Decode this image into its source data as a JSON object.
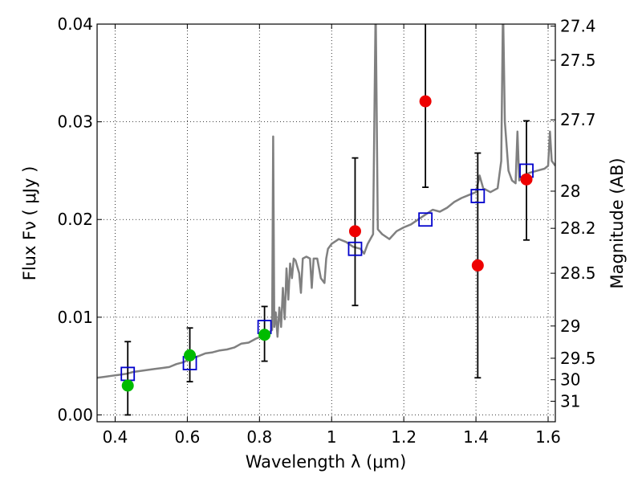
{
  "chart_data": {
    "type": "scatter",
    "xlabel": "Wavelength  λ (μm)",
    "ylabel": "Flux  Fν  ( μJy )",
    "y2label": "Magnitude (AB)",
    "xlim": [
      0.35,
      1.62
    ],
    "ylim": [
      -0.0007,
      0.04
    ],
    "grid": true,
    "xticks": [
      {
        "v": 0.4,
        "label": "0.4"
      },
      {
        "v": 0.6,
        "label": "0.6"
      },
      {
        "v": 0.8,
        "label": "0.8"
      },
      {
        "v": 1.0,
        "label": "1"
      },
      {
        "v": 1.2,
        "label": "1.2"
      },
      {
        "v": 1.4,
        "label": "1.4"
      },
      {
        "v": 1.6,
        "label": "1.6"
      }
    ],
    "yticks": [
      {
        "v": 0.0,
        "label": "0.00"
      },
      {
        "v": 0.01,
        "label": "0.01"
      },
      {
        "v": 0.02,
        "label": "0.02"
      },
      {
        "v": 0.03,
        "label": "0.03"
      },
      {
        "v": 0.04,
        "label": "0.04"
      }
    ],
    "y2ticks": [
      {
        "flux": 0.0398,
        "label": "27.4"
      },
      {
        "flux": 0.0363,
        "label": "27.5"
      },
      {
        "flux": 0.0302,
        "label": "27.7"
      },
      {
        "flux": 0.0229,
        "label": "28"
      },
      {
        "flux": 0.0191,
        "label": "28.2"
      },
      {
        "flux": 0.0145,
        "label": "28.5"
      },
      {
        "flux": 0.0091,
        "label": "29"
      },
      {
        "flux": 0.0058,
        "label": "29.5"
      },
      {
        "flux": 0.0036,
        "label": "30"
      },
      {
        "flux": 0.0014,
        "label": "31"
      }
    ],
    "spectrum": {
      "color": "#808080",
      "points": [
        [
          0.35,
          0.0038
        ],
        [
          0.37,
          0.0039
        ],
        [
          0.39,
          0.004
        ],
        [
          0.41,
          0.0041
        ],
        [
          0.43,
          0.0042
        ],
        [
          0.45,
          0.0044
        ],
        [
          0.47,
          0.0045
        ],
        [
          0.49,
          0.0046
        ],
        [
          0.51,
          0.0047
        ],
        [
          0.53,
          0.0048
        ],
        [
          0.55,
          0.0049
        ],
        [
          0.57,
          0.0052
        ],
        [
          0.59,
          0.0054
        ],
        [
          0.61,
          0.0058
        ],
        [
          0.63,
          0.006
        ],
        [
          0.65,
          0.0063
        ],
        [
          0.67,
          0.0064
        ],
        [
          0.69,
          0.0066
        ],
        [
          0.71,
          0.0067
        ],
        [
          0.73,
          0.0069
        ],
        [
          0.75,
          0.0073
        ],
        [
          0.77,
          0.0074
        ],
        [
          0.79,
          0.0078
        ],
        [
          0.81,
          0.0081
        ],
        [
          0.825,
          0.0084
        ],
        [
          0.835,
          0.0087
        ],
        [
          0.838,
          0.0285
        ],
        [
          0.841,
          0.009
        ],
        [
          0.845,
          0.0105
        ],
        [
          0.85,
          0.008
        ],
        [
          0.855,
          0.011
        ],
        [
          0.86,
          0.009
        ],
        [
          0.865,
          0.013
        ],
        [
          0.87,
          0.0098
        ],
        [
          0.875,
          0.015
        ],
        [
          0.88,
          0.0118
        ],
        [
          0.885,
          0.0155
        ],
        [
          0.89,
          0.014
        ],
        [
          0.895,
          0.016
        ],
        [
          0.9,
          0.0158
        ],
        [
          0.91,
          0.0145
        ],
        [
          0.915,
          0.0125
        ],
        [
          0.92,
          0.016
        ],
        [
          0.93,
          0.0162
        ],
        [
          0.94,
          0.016
        ],
        [
          0.945,
          0.013
        ],
        [
          0.95,
          0.016
        ],
        [
          0.96,
          0.016
        ],
        [
          0.97,
          0.014
        ],
        [
          0.98,
          0.0135
        ],
        [
          0.985,
          0.016
        ],
        [
          0.99,
          0.017
        ],
        [
          1.0,
          0.0175
        ],
        [
          1.02,
          0.018
        ],
        [
          1.04,
          0.0177
        ],
        [
          1.06,
          0.0172
        ],
        [
          1.08,
          0.017
        ],
        [
          1.09,
          0.0165
        ],
        [
          1.1,
          0.0175
        ],
        [
          1.115,
          0.0185
        ],
        [
          1.122,
          0.042
        ],
        [
          1.128,
          0.019
        ],
        [
          1.14,
          0.0185
        ],
        [
          1.16,
          0.018
        ],
        [
          1.18,
          0.0188
        ],
        [
          1.2,
          0.0192
        ],
        [
          1.22,
          0.0195
        ],
        [
          1.24,
          0.02
        ],
        [
          1.26,
          0.0205
        ],
        [
          1.28,
          0.021
        ],
        [
          1.3,
          0.0208
        ],
        [
          1.32,
          0.0212
        ],
        [
          1.34,
          0.0218
        ],
        [
          1.36,
          0.0222
        ],
        [
          1.38,
          0.0225
        ],
        [
          1.4,
          0.0228
        ],
        [
          1.41,
          0.0245
        ],
        [
          1.42,
          0.0232
        ],
        [
          1.44,
          0.0228
        ],
        [
          1.46,
          0.0232
        ],
        [
          1.47,
          0.026
        ],
        [
          1.475,
          0.042
        ],
        [
          1.48,
          0.03
        ],
        [
          1.49,
          0.025
        ],
        [
          1.5,
          0.024
        ],
        [
          1.51,
          0.0237
        ],
        [
          1.515,
          0.029
        ],
        [
          1.52,
          0.024
        ],
        [
          1.53,
          0.0245
        ],
        [
          1.55,
          0.0248
        ],
        [
          1.57,
          0.025
        ],
        [
          1.59,
          0.0252
        ],
        [
          1.6,
          0.0255
        ],
        [
          1.605,
          0.029
        ],
        [
          1.61,
          0.026
        ],
        [
          1.62,
          0.0255
        ]
      ]
    },
    "model_points": {
      "color": "#0000cc",
      "points": [
        [
          0.435,
          0.0042
        ],
        [
          0.607,
          0.0053
        ],
        [
          0.814,
          0.009
        ],
        [
          1.065,
          0.017
        ],
        [
          1.26,
          0.02
        ],
        [
          1.405,
          0.0224
        ],
        [
          1.54,
          0.025
        ]
      ]
    },
    "detections": {
      "color": "#00bb00",
      "points": [
        {
          "x": 0.435,
          "y": 0.003,
          "lo": 0.0,
          "hi": 0.0075
        },
        {
          "x": 0.607,
          "y": 0.0061,
          "lo": 0.0034,
          "hi": 0.0089
        },
        {
          "x": 0.814,
          "y": 0.0082,
          "lo": 0.0055,
          "hi": 0.0111
        }
      ]
    },
    "nondetections": {
      "color": "#ee0000",
      "points": [
        {
          "x": 1.065,
          "y": 0.0188,
          "lo": 0.0112,
          "hi": 0.0263
        },
        {
          "x": 1.26,
          "y": 0.0321,
          "lo": 0.0233,
          "hi": 0.045
        },
        {
          "x": 1.405,
          "y": 0.0153,
          "lo": 0.0038,
          "hi": 0.0268
        },
        {
          "x": 1.54,
          "y": 0.0241,
          "lo": 0.0179,
          "hi": 0.0301
        }
      ]
    }
  }
}
